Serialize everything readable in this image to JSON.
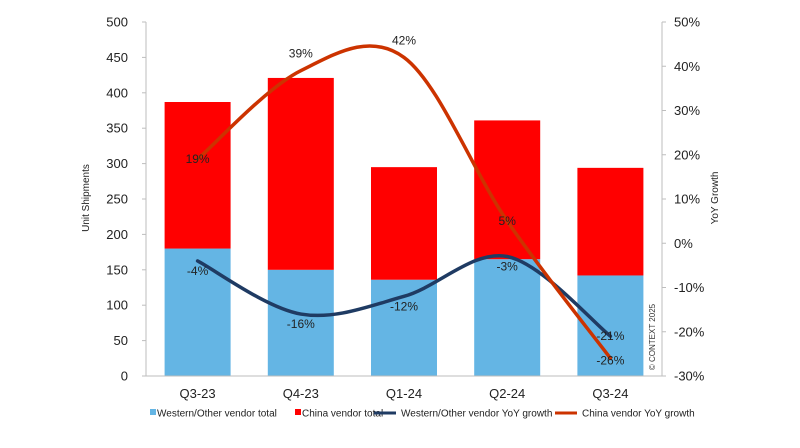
{
  "chart_data": {
    "type": "bar",
    "stacked": true,
    "categories": [
      "Q3-23",
      "Q4-23",
      "Q1-24",
      "Q2-24",
      "Q3-24"
    ],
    "series": [
      {
        "name": "Western/Other vendor total",
        "kind": "bar",
        "axis": "left",
        "color": "#64b5e4",
        "values": [
          180,
          150,
          136,
          165,
          142
        ]
      },
      {
        "name": "China vendor total",
        "kind": "bar",
        "axis": "left",
        "color": "#ff0000",
        "values": [
          207,
          271,
          159,
          196,
          152
        ]
      },
      {
        "name": "Western/Other vendor YoY growth",
        "kind": "line",
        "axis": "right",
        "color": "#1f3b63",
        "values": [
          -4,
          -16,
          -12,
          -3,
          -21
        ],
        "labels": [
          "-4%",
          "-16%",
          "-12%",
          "-3%",
          "-21%"
        ]
      },
      {
        "name": "China vendor YoY growth",
        "kind": "line",
        "axis": "right",
        "color": "#cc3300",
        "values": [
          19,
          39,
          42,
          5,
          -26
        ],
        "labels": [
          "19%",
          "39%",
          "42%",
          "5%",
          "-26%"
        ]
      }
    ],
    "ylabel": "Unit Shipments",
    "y2label": "YoY Growth",
    "ylim": [
      0,
      500
    ],
    "y2lim": [
      -30,
      50
    ],
    "yticks": [
      "0",
      "50",
      "100",
      "150",
      "200",
      "250",
      "300",
      "350",
      "400",
      "450",
      "500"
    ],
    "y2ticks": [
      "-30%",
      "-20%",
      "-10%",
      "0%",
      "10%",
      "20%",
      "30%",
      "40%",
      "50%"
    ],
    "grid": false,
    "legend_position": "bottom",
    "watermark": "© CONTEXT 2025"
  }
}
